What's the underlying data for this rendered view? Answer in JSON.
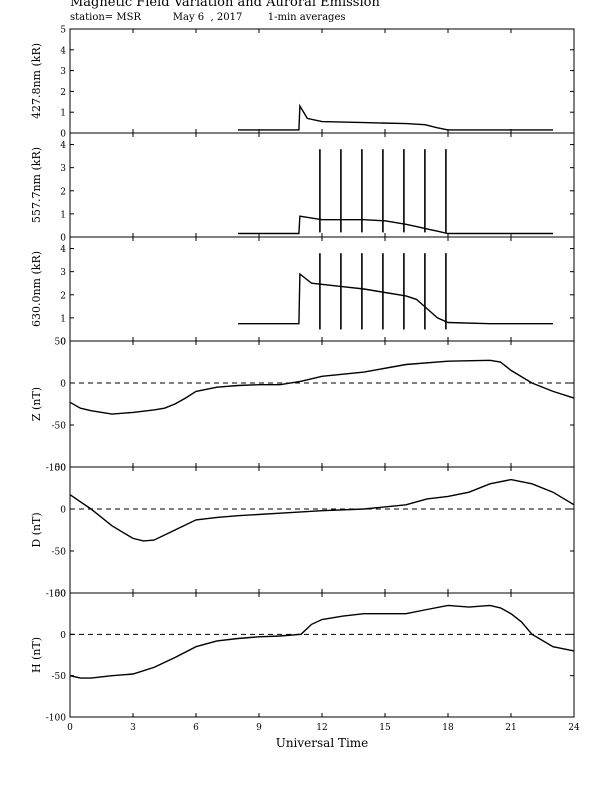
{
  "title": "Magnetic Field Variation and Auroral Emission",
  "subtitle": "station= MSR          May 6  , 2017        1-min averages",
  "chart_data": [
    {
      "type": "line",
      "ylabel": "427.8nm (kR)",
      "ylim": [
        0,
        5
      ],
      "yticks": [
        0,
        1,
        2,
        3,
        4,
        5
      ],
      "xlim": [
        0,
        24
      ],
      "x": [
        8,
        10.9,
        10.95,
        11.3,
        12,
        14,
        16,
        16.9,
        17.5,
        18,
        20,
        23
      ],
      "y": [
        0.15,
        0.15,
        1.3,
        0.7,
        0.55,
        0.5,
        0.45,
        0.4,
        0.25,
        0.15,
        0.15,
        0.15
      ],
      "spikes": [],
      "zero_line": false
    },
    {
      "type": "line",
      "ylabel": "557.7nm (kR)",
      "ylim": [
        0,
        4.5
      ],
      "yticks": [
        0,
        1,
        2,
        3,
        4
      ],
      "xlim": [
        0,
        24
      ],
      "x": [
        8,
        10.9,
        10.95,
        12,
        14,
        15,
        16,
        16.5,
        17,
        17.5,
        18,
        20,
        23
      ],
      "y": [
        0.15,
        0.15,
        0.9,
        0.75,
        0.75,
        0.7,
        0.55,
        0.45,
        0.35,
        0.25,
        0.15,
        0.15,
        0.15
      ],
      "spikes": [
        [
          11.9,
          3.8
        ],
        [
          12.9,
          3.8
        ],
        [
          13.9,
          3.8
        ],
        [
          14.9,
          3.8
        ],
        [
          15.9,
          3.8
        ],
        [
          16.9,
          3.8
        ],
        [
          17.9,
          3.8
        ]
      ],
      "spike_floor": 0.2,
      "zero_line": false
    },
    {
      "type": "line",
      "ylabel": "630.0nm (kR)",
      "ylim": [
        0,
        4.5
      ],
      "yticks": [
        0,
        1,
        2,
        3,
        4
      ],
      "xlim": [
        0,
        24
      ],
      "x": [
        8,
        10.9,
        10.95,
        11.5,
        13,
        14,
        15,
        16,
        16.5,
        17,
        17.5,
        18,
        20,
        23
      ],
      "y": [
        0.75,
        0.75,
        2.9,
        2.5,
        2.35,
        2.25,
        2.1,
        1.95,
        1.8,
        1.4,
        1.0,
        0.8,
        0.75,
        0.75
      ],
      "spikes": [
        [
          11.9,
          3.8
        ],
        [
          12.9,
          3.8
        ],
        [
          13.9,
          3.8
        ],
        [
          14.9,
          3.8
        ],
        [
          15.9,
          3.8
        ],
        [
          16.9,
          3.8
        ],
        [
          17.9,
          3.8
        ]
      ],
      "spike_floor": 0.5,
      "zero_line": false
    },
    {
      "type": "line",
      "ylabel": "Z (nT)",
      "ylim": [
        -100,
        50
      ],
      "yticks": [
        -100,
        -50,
        0,
        50
      ],
      "xlim": [
        0,
        24
      ],
      "x": [
        0,
        0.5,
        1,
        2,
        3,
        4,
        4.5,
        5,
        5.5,
        6,
        7,
        8,
        9,
        10,
        11,
        12,
        14,
        16,
        18,
        20,
        20.5,
        21,
        22,
        23,
        24
      ],
      "y": [
        -23,
        -30,
        -33,
        -37,
        -35,
        -32,
        -30,
        -25,
        -18,
        -10,
        -5,
        -3,
        -2,
        -2,
        2,
        8,
        13,
        22,
        26,
        27,
        25,
        15,
        0,
        -10,
        -18
      ],
      "spikes": [],
      "zero_line": true
    },
    {
      "type": "line",
      "ylabel": "D (nT)",
      "ylim": [
        -100,
        50
      ],
      "yticks": [
        -100,
        -50,
        0,
        50
      ],
      "xlim": [
        0,
        24
      ],
      "x": [
        0,
        1,
        2,
        3,
        3.5,
        4,
        5,
        6,
        7,
        8,
        10,
        12,
        14,
        16,
        17,
        18,
        19,
        20,
        21,
        22,
        23,
        24
      ],
      "y": [
        17,
        0,
        -20,
        -35,
        -38,
        -37,
        -25,
        -13,
        -10,
        -8,
        -5,
        -2,
        0,
        5,
        12,
        15,
        20,
        30,
        35,
        30,
        20,
        5
      ],
      "spikes": [],
      "zero_line": true
    },
    {
      "type": "line",
      "ylabel": "H (nT)",
      "ylim": [
        -100,
        50
      ],
      "yticks": [
        -100,
        -50,
        0,
        50
      ],
      "xlim": [
        0,
        24
      ],
      "x": [
        0,
        0.5,
        1,
        2,
        3,
        4,
        5,
        6,
        7,
        8,
        9,
        10,
        11,
        11.5,
        12,
        13,
        14,
        16,
        17,
        18,
        19,
        20,
        20.5,
        21,
        21.5,
        22,
        23,
        24
      ],
      "y": [
        -50,
        -53,
        -53,
        -50,
        -48,
        -40,
        -28,
        -15,
        -8,
        -5,
        -3,
        -2,
        0,
        12,
        18,
        22,
        25,
        25,
        30,
        35,
        33,
        35,
        32,
        25,
        15,
        0,
        -15,
        -20
      ],
      "spikes": [],
      "zero_line": true
    }
  ],
  "xaxis": {
    "label": "Universal Time",
    "ticks": [
      0,
      3,
      6,
      9,
      12,
      15,
      18,
      21,
      24
    ],
    "tick_labels": [
      "0",
      "3",
      "6",
      "9",
      "12",
      "15",
      "18",
      "21",
      "24"
    ]
  }
}
